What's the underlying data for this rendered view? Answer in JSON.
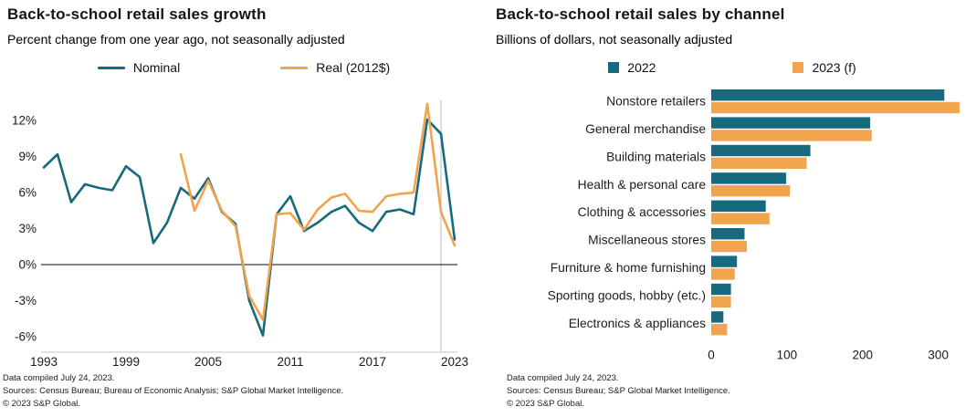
{
  "colors": {
    "teal": "#176a7d",
    "orange": "#f0a44e",
    "axis_dark": "#3a3a3a",
    "axis_light": "#c8c8c8",
    "divider_gray": "#b9b9b9",
    "tick_text": "#1a1a1a"
  },
  "chart_data": [
    {
      "type": "line",
      "title": "Back-to-school retail sales growth",
      "subtitle": "Percent change from one year ago, not seasonally adjusted",
      "ylim": [
        -7.3,
        14.3
      ],
      "yticks": [
        12,
        9,
        6,
        3,
        0,
        -3,
        -6
      ],
      "ytick_suffix": "%",
      "xticks": [
        1993,
        1999,
        2005,
        2011,
        2017,
        2023
      ],
      "xlim": [
        1993,
        2023
      ],
      "forecast_divider_x": 2022,
      "grid": "none",
      "legend_position": "top-center",
      "series": [
        {
          "name": "Nominal",
          "color": "#176a7d",
          "x": [
            1993,
            1994,
            1995,
            1996,
            1997,
            1998,
            1999,
            2000,
            2001,
            2002,
            2003,
            2004,
            2005,
            2006,
            2007,
            2008,
            2009,
            2010,
            2011,
            2012,
            2013,
            2014,
            2015,
            2016,
            2017,
            2018,
            2019,
            2020,
            2021,
            2022,
            2023
          ],
          "values": [
            8.1,
            9.2,
            5.2,
            6.7,
            6.4,
            6.2,
            8.2,
            7.3,
            1.8,
            3.5,
            6.4,
            5.5,
            7.2,
            4.4,
            3.4,
            -3.0,
            -5.9,
            4.2,
            5.7,
            2.8,
            3.5,
            4.4,
            4.9,
            3.5,
            2.8,
            4.4,
            4.6,
            4.2,
            12.1,
            10.9,
            2.1
          ]
        },
        {
          "name": "Real (2012$)",
          "color": "#f0a44e",
          "x": [
            2003,
            2004,
            2005,
            2006,
            2007,
            2008,
            2009,
            2010,
            2011,
            2012,
            2013,
            2014,
            2015,
            2016,
            2017,
            2018,
            2019,
            2020,
            2021,
            2022,
            2023
          ],
          "values": [
            9.2,
            4.5,
            7.0,
            4.5,
            3.2,
            -2.6,
            -4.6,
            4.2,
            4.3,
            2.9,
            4.6,
            5.6,
            5.9,
            4.5,
            4.4,
            5.7,
            5.9,
            6.0,
            13.4,
            4.4,
            1.6
          ]
        }
      ]
    },
    {
      "type": "bar",
      "orientation": "horizontal",
      "title": "Back-to-school retail sales by channel",
      "subtitle": "Billions of dollars, not seasonally adjusted",
      "categories": [
        "Nonstore retailers",
        "General merchandise",
        "Building materials",
        "Health & personal care",
        "Clothing & accessories",
        "Miscellaneous stores",
        "Furniture & home furnishing",
        "Sporting goods, hobby (etc.)",
        "Electronics & appliances"
      ],
      "series": [
        {
          "name": "2022",
          "color": "#176a7d",
          "values": [
            308,
            210,
            131,
            99,
            72,
            44,
            34,
            26,
            16
          ]
        },
        {
          "name": "2023 (f)",
          "color": "#f0a44e",
          "values": [
            328,
            212,
            126,
            104,
            77,
            47,
            31,
            26,
            21
          ]
        }
      ],
      "xticks": [
        0,
        100,
        200,
        300
      ],
      "xlim": [
        0,
        345
      ],
      "grid": "none",
      "legend_position": "top-center"
    }
  ],
  "footers": {
    "left": [
      "Data compiled July 24, 2023.",
      "Sources: Census Bureau; Bureau of Economic Analysis; S&P Global Market Intelligence.",
      "© 2023 S&P Global."
    ],
    "right": [
      "Data compiled July 24, 2023.",
      "Sources: Census Bureau; S&P Global Market Intelligence.",
      "© 2023 S&P Global."
    ]
  }
}
